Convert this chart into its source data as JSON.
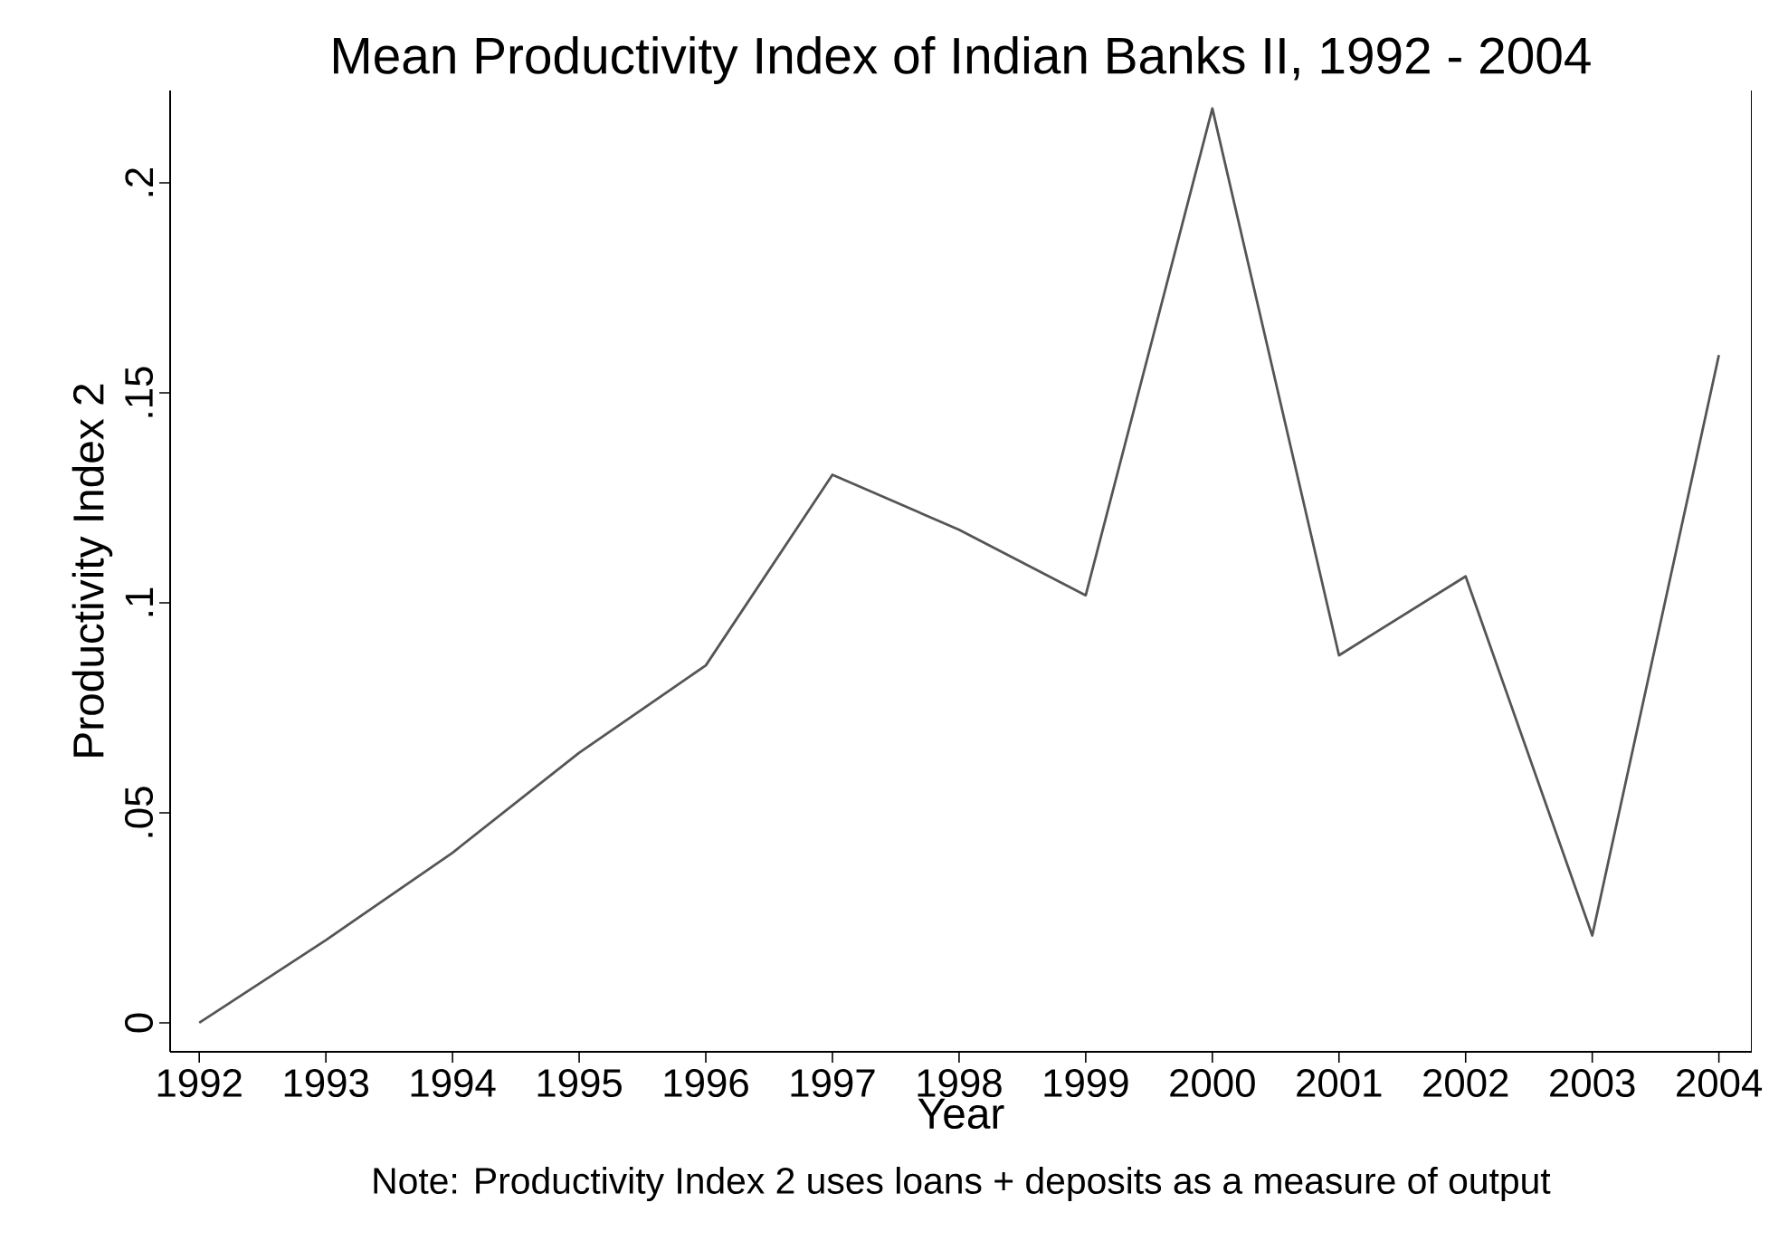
{
  "chart_data": {
    "type": "line",
    "title": "Mean Productivity Index of Indian Banks II, 1992 - 2004",
    "xlabel": "Year",
    "ylabel": "Productivity Index 2",
    "annotations": [
      "Note: Productivity Index 2 uses loans + deposits as a measure of output"
    ],
    "x": [
      1992,
      1993,
      1994,
      1995,
      1996,
      1997,
      1998,
      1999,
      2000,
      2001,
      2002,
      2003,
      2004
    ],
    "series": [
      {
        "color": "#555555",
        "values": [
          0,
          0.0197,
          0.0405,
          0.0643,
          0.0851,
          0.1305,
          0.1174,
          0.1018,
          0.2177,
          0.0875,
          0.1063,
          0.0208,
          0.159
        ]
      }
    ],
    "xlim": [
      1991.77,
      2004.26
    ],
    "ylim": [
      -0.0069,
      0.222
    ],
    "xticks": [
      1992,
      1993,
      1994,
      1995,
      1996,
      1997,
      1998,
      1999,
      2000,
      2001,
      2002,
      2003,
      2004
    ],
    "yticks": [
      0,
      {
        "value": 0.05,
        "label": ".05"
      },
      {
        "value": 0.1,
        "label": ".1"
      },
      {
        "value": 0.15,
        "label": ".15"
      },
      {
        "value": 0.2,
        "label": ".2"
      }
    ],
    "grid": false,
    "marker": "none",
    "line_style": "solid"
  }
}
